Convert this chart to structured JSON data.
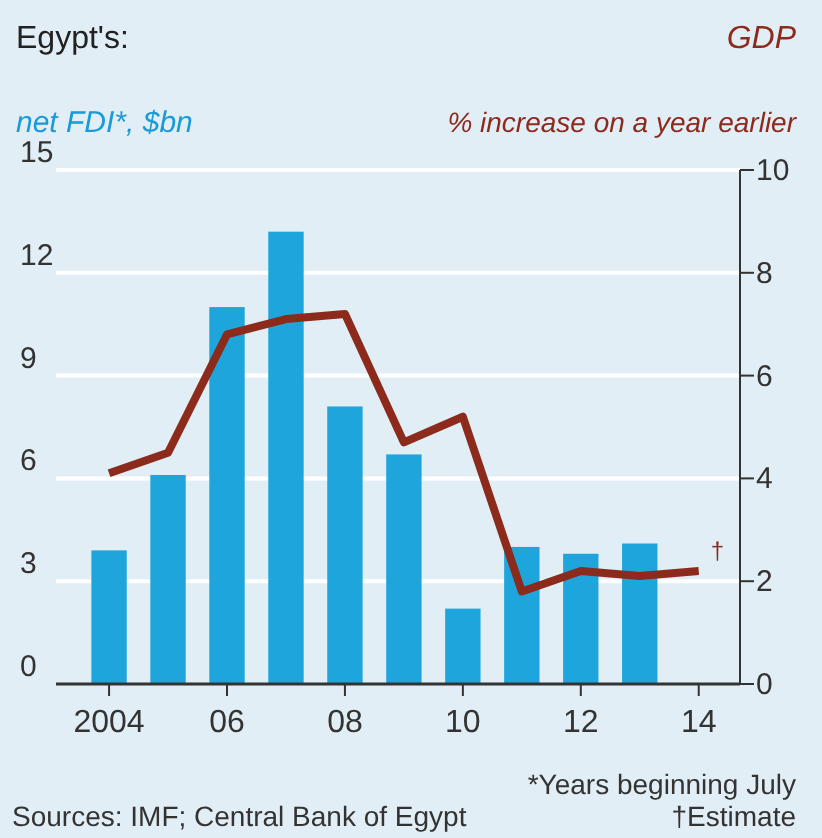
{
  "chart_data": {
    "type": "bar",
    "title": "Egypt's:",
    "ylabel": "net FDI*, $bn",
    "y2label": "GDP",
    "subtitle": "% increase on a year earlier",
    "x": [
      2004,
      2005,
      2006,
      2007,
      2008,
      2009,
      2010,
      2011,
      2012,
      2013
    ],
    "xlim": [
      2003.1,
      2014.7
    ],
    "xticks": [
      {
        "value": 2004,
        "label": "2004"
      },
      {
        "value": 2006,
        "label": "06"
      },
      {
        "value": 2008,
        "label": "08"
      },
      {
        "value": 2010,
        "label": "10"
      },
      {
        "value": 2012,
        "label": "12"
      },
      {
        "value": 2014,
        "label": "14"
      }
    ],
    "ylim": [
      0,
      15
    ],
    "yticks": [
      0,
      3,
      6,
      9,
      12,
      15
    ],
    "y2lim": [
      0,
      10
    ],
    "y2ticks": [
      0,
      2,
      4,
      6,
      8,
      10
    ],
    "grid": "y",
    "series": [
      {
        "color": "#1ea6dc",
        "values": [
          3.9,
          6.1,
          11.0,
          13.2,
          8.1,
          6.7,
          2.2,
          4.0,
          3.8,
          4.1
        ]
      },
      {
        "type": "line",
        "axis": "y2",
        "color": "#8c2a1c",
        "marker": "none",
        "line_style": "solid",
        "x": [
          2004,
          2005,
          2006,
          2007,
          2008,
          2009,
          2010,
          2011,
          2012,
          2013,
          2014
        ],
        "values": [
          4.1,
          4.5,
          6.8,
          7.1,
          7.2,
          4.7,
          5.2,
          1.8,
          2.2,
          2.1,
          2.2
        ]
      }
    ],
    "annotations": [
      "†",
      "*Years beginning July",
      "Sources: IMF; Central Bank of Egypt",
      "†Estimate"
    ]
  }
}
